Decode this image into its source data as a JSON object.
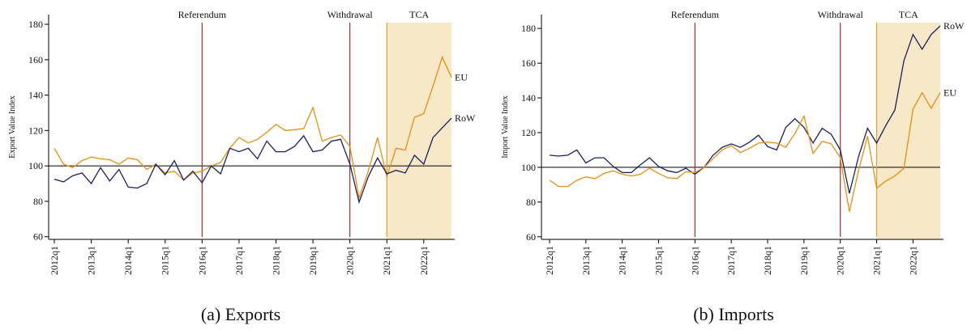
{
  "chart_data": [
    {
      "type": "line",
      "subtitle": "(a) Exports",
      "ylabel": "Export Value Index",
      "categories": [
        "2012q1",
        null,
        null,
        null,
        "2013q1",
        null,
        null,
        null,
        "2014q1",
        null,
        null,
        null,
        "2015q1",
        null,
        null,
        null,
        "2016q1",
        null,
        null,
        null,
        "2017q1",
        null,
        null,
        null,
        "2018q1",
        null,
        null,
        null,
        "2019q1",
        null,
        null,
        null,
        "2020q1",
        null,
        null,
        null,
        "2021q1",
        null,
        null,
        null,
        "2022q1",
        null,
        null,
        null
      ],
      "ylim": [
        58.5,
        185.5
      ],
      "yticks": [
        60,
        80,
        100,
        120,
        140,
        160,
        180
      ],
      "hline": 100,
      "events": [
        {
          "label": "Referendum",
          "at": "2016q1",
          "color": "#a0302a"
        },
        {
          "label": "Withdrawal",
          "at": "2020q1",
          "color": "#a0302a"
        },
        {
          "label": "TCA",
          "at": "2021q1",
          "color": "#e0a030",
          "shade": "#f7e8c8"
        }
      ],
      "series": [
        {
          "name": "EU",
          "color": "#e8900e",
          "values": [
            110,
            101,
            99,
            103,
            105,
            104,
            103.5,
            101,
            104.5,
            103.5,
            98,
            101,
            96,
            97,
            92,
            96,
            97,
            100,
            102,
            110,
            116,
            113,
            115,
            119,
            123.5,
            120,
            120.5,
            121,
            133,
            114,
            116,
            117.5,
            111,
            82,
            97,
            116,
            94,
            110,
            109,
            127.5,
            129.5,
            145,
            161.5,
            150
          ]
        },
        {
          "name": "RoW",
          "color": "#1c1f5e",
          "values": [
            92.5,
            91,
            94.5,
            96,
            90,
            99,
            91.5,
            98,
            88,
            87.5,
            90,
            101,
            95,
            103,
            92,
            97,
            90.5,
            100,
            95.5,
            110,
            108,
            110,
            104,
            114,
            108,
            108,
            111,
            117,
            108,
            109,
            114,
            115,
            101,
            79.5,
            94,
            104.5,
            95.5,
            97.5,
            96,
            106,
            101,
            116,
            121.5,
            127
          ]
        }
      ]
    },
    {
      "type": "line",
      "subtitle": "(b) Imports",
      "ylabel": "Import Value Index",
      "categories": [
        "2012q1",
        null,
        null,
        null,
        "2013q1",
        null,
        null,
        null,
        "2014q1",
        null,
        null,
        null,
        "2015q1",
        null,
        null,
        null,
        "2016q1",
        null,
        null,
        null,
        "2017q1",
        null,
        null,
        null,
        "2018q1",
        null,
        null,
        null,
        "2019q1",
        null,
        null,
        null,
        "2020q1",
        null,
        null,
        null,
        "2021q1",
        null,
        null,
        null,
        "2022q1",
        null,
        null,
        null
      ],
      "ylim": [
        58.5,
        188
      ],
      "yticks": [
        60,
        80,
        100,
        120,
        140,
        160,
        180
      ],
      "hline": 100,
      "events": [
        {
          "label": "Referendum",
          "at": "2016q1",
          "color": "#a0302a"
        },
        {
          "label": "Withdrawal",
          "at": "2020q1",
          "color": "#a0302a"
        },
        {
          "label": "TCA",
          "at": "2021q1",
          "color": "#e0a030",
          "shade": "#f7e8c8"
        }
      ],
      "series": [
        {
          "name": "RoW",
          "color": "#1c1f5e",
          "values": [
            107,
            106.5,
            107,
            110,
            102.5,
            105.5,
            105.5,
            100.5,
            97,
            97,
            101.5,
            105.5,
            100.5,
            98,
            97,
            99.5,
            96,
            100,
            107,
            111.5,
            113.5,
            111.5,
            114.5,
            118.5,
            112,
            110,
            123,
            128,
            123,
            114,
            122.5,
            119,
            110,
            85,
            106,
            122.5,
            114,
            124,
            133,
            161.5,
            176.5,
            168,
            176.5,
            181.5
          ]
        },
        {
          "name": "EU",
          "color": "#e8900e",
          "values": [
            92.5,
            89,
            89,
            92.5,
            94.5,
            93.5,
            96.5,
            98,
            96,
            95,
            96,
            99.5,
            96.5,
            94,
            93.5,
            97.5,
            97,
            100,
            105,
            110,
            112.5,
            108.5,
            111,
            114,
            114.5,
            114,
            111.5,
            119.5,
            129.5,
            108,
            115,
            113.5,
            105.5,
            74.5,
            98,
            118,
            88,
            92,
            95,
            99.5,
            133.5,
            143,
            134,
            143
          ]
        }
      ]
    }
  ]
}
